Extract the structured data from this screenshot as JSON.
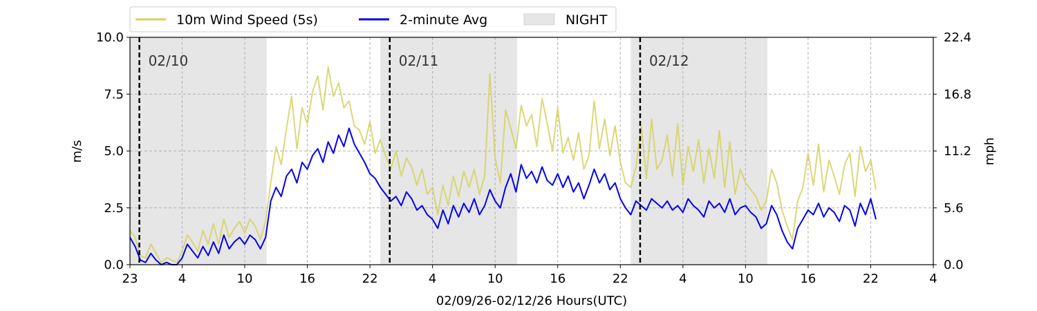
{
  "chart_data": {
    "type": "line",
    "xlabel": "02/09/26-02/12/26  Hours(UTC)",
    "ylabel_left": "m/s",
    "ylabel_right": "mph",
    "ylim": [
      0,
      10
    ],
    "xlim_hours": [
      0,
      77
    ],
    "x_ticks": [
      {
        "h": 0,
        "label": "23"
      },
      {
        "h": 5,
        "label": "4"
      },
      {
        "h": 11,
        "label": "10"
      },
      {
        "h": 17,
        "label": "16"
      },
      {
        "h": 23,
        "label": "22"
      },
      {
        "h": 29,
        "label": "4"
      },
      {
        "h": 35,
        "label": "10"
      },
      {
        "h": 41,
        "label": "16"
      },
      {
        "h": 47,
        "label": "22"
      },
      {
        "h": 53,
        "label": "4"
      },
      {
        "h": 59,
        "label": "10"
      },
      {
        "h": 65,
        "label": "16"
      },
      {
        "h": 71,
        "label": "22"
      },
      {
        "h": 77,
        "label": "4"
      }
    ],
    "y_ticks_left": [
      "0.0",
      "2.5",
      "5.0",
      "7.5",
      "10.0"
    ],
    "y_ticks_right": [
      "0.0",
      "5.6",
      "11.2",
      "16.8",
      "22.4"
    ],
    "grid": true,
    "legend_position": "top-left",
    "legend": [
      {
        "name": "10m Wind Speed (5s)",
        "kind": "line",
        "color": "#d4d15f"
      },
      {
        "name": "2-minute Avg",
        "kind": "line",
        "color": "#0000ee"
      },
      {
        "name": "NIGHT",
        "kind": "patch",
        "color": "#e6e6e6"
      }
    ],
    "night_periods": [
      [
        0,
        13.1
      ],
      [
        24,
        37.1
      ],
      [
        48,
        61.1
      ]
    ],
    "day_markers": [
      {
        "h": 0.9,
        "label": "02/10"
      },
      {
        "h": 24.9,
        "label": "02/11"
      },
      {
        "h": 48.9,
        "label": "02/12"
      }
    ],
    "series": [
      {
        "name": "2-minute Avg",
        "x": [
          0,
          0.5,
          1,
          1.5,
          2,
          2.5,
          3,
          3.5,
          4,
          4.5,
          5,
          5.5,
          6,
          6.5,
          7,
          7.5,
          8,
          8.5,
          9,
          9.5,
          10,
          10.5,
          11,
          11.5,
          12,
          12.5,
          13,
          13.5,
          14,
          14.5,
          15,
          15.5,
          16,
          16.5,
          17,
          17.5,
          18,
          18.5,
          19,
          19.5,
          20,
          20.5,
          21,
          21.5,
          22,
          22.5,
          23,
          23.5,
          24,
          24.5,
          25,
          25.5,
          26,
          26.5,
          27,
          27.5,
          28,
          28.5,
          29,
          29.5,
          30,
          30.5,
          31,
          31.5,
          32,
          32.5,
          33,
          33.5,
          34,
          34.5,
          35,
          35.5,
          36,
          36.5,
          37,
          37.5,
          38,
          38.5,
          39,
          39.5,
          40,
          40.5,
          41,
          41.5,
          42,
          42.5,
          43,
          43.5,
          44,
          44.5,
          45,
          45.5,
          46,
          46.5,
          47,
          47.5,
          48,
          48.5,
          49,
          49.5,
          50,
          50.5,
          51,
          51.5,
          52,
          52.5,
          53,
          53.5,
          54,
          54.5,
          55,
          55.5,
          56,
          56.5,
          57,
          57.5,
          58,
          58.5,
          59,
          59.5,
          60,
          60.5,
          61,
          61.5,
          62,
          62.5,
          63,
          63.5,
          64,
          64.5,
          65,
          65.5,
          66,
          66.5,
          67,
          67.5,
          68,
          68.5,
          69,
          69.5,
          70,
          70.5,
          71,
          71.5
        ],
        "values": [
          1.2,
          0.8,
          0.2,
          0.1,
          0.5,
          0.2,
          0,
          0.1,
          0,
          0,
          0.3,
          0.9,
          0.6,
          0.3,
          0.8,
          0.4,
          1.0,
          0.5,
          1.3,
          0.7,
          1.0,
          1.2,
          0.9,
          1.3,
          1.1,
          0.7,
          1.2,
          2.8,
          3.4,
          3.0,
          3.9,
          4.2,
          3.6,
          4.5,
          4.2,
          4.8,
          5.1,
          4.5,
          5.4,
          4.9,
          5.7,
          5.2,
          6.0,
          5.3,
          4.9,
          4.5,
          4.0,
          3.8,
          3.4,
          3.1,
          2.8,
          3.0,
          2.6,
          3.2,
          2.9,
          2.4,
          2.6,
          2.2,
          2.0,
          1.6,
          2.4,
          1.8,
          2.6,
          2.1,
          2.7,
          2.3,
          2.9,
          2.2,
          2.6,
          3.3,
          2.8,
          2.5,
          3.4,
          4.0,
          3.2,
          4.4,
          3.8,
          4.1,
          3.6,
          4.3,
          3.7,
          3.5,
          4.0,
          3.4,
          3.9,
          3.2,
          3.6,
          2.9,
          3.5,
          4.2,
          3.6,
          4.0,
          3.3,
          3.6,
          2.9,
          2.5,
          2.2,
          2.8,
          2.6,
          2.4,
          2.9,
          2.7,
          2.5,
          2.8,
          2.4,
          2.6,
          2.3,
          2.9,
          2.6,
          2.4,
          2.1,
          2.8,
          2.5,
          2.7,
          2.3,
          2.9,
          2.2,
          2.5,
          2.6,
          2.3,
          2.1,
          1.6,
          1.8,
          2.6,
          2.2,
          1.5,
          1.0,
          0.7,
          1.6,
          2.0,
          2.4,
          2.2,
          2.7,
          2.1,
          2.5,
          2.3,
          1.9,
          2.6,
          2.4,
          1.7,
          2.7,
          2.2,
          2.9,
          2.0
        ]
      },
      {
        "name": "10m Wind Speed (5s)",
        "x": [
          0,
          0.5,
          1,
          1.5,
          2,
          2.5,
          3,
          3.5,
          4,
          4.5,
          5,
          5.5,
          6,
          6.5,
          7,
          7.5,
          8,
          8.5,
          9,
          9.5,
          10,
          10.5,
          11,
          11.5,
          12,
          12.5,
          13,
          13.5,
          14,
          14.5,
          15,
          15.5,
          16,
          16.5,
          17,
          17.5,
          18,
          18.5,
          19,
          19.5,
          20,
          20.5,
          21,
          21.5,
          22,
          22.5,
          23,
          23.5,
          24,
          24.5,
          25,
          25.5,
          26,
          26.5,
          27,
          27.5,
          28,
          28.5,
          29,
          29.5,
          30,
          30.5,
          31,
          31.5,
          32,
          32.5,
          33,
          33.5,
          34,
          34.5,
          35,
          35.5,
          36,
          36.5,
          37,
          37.5,
          38,
          38.5,
          39,
          39.5,
          40,
          40.5,
          41,
          41.5,
          42,
          42.5,
          43,
          43.5,
          44,
          44.5,
          45,
          45.5,
          46,
          46.5,
          47,
          47.5,
          48,
          48.5,
          49,
          49.5,
          50,
          50.5,
          51,
          51.5,
          52,
          52.5,
          53,
          53.5,
          54,
          54.5,
          55,
          55.5,
          56,
          56.5,
          57,
          57.5,
          58,
          58.5,
          59,
          59.5,
          60,
          60.5,
          61,
          61.5,
          62,
          62.5,
          63,
          63.5,
          64,
          64.5,
          65,
          65.5,
          66,
          66.5,
          67,
          67.5,
          68,
          68.5,
          69,
          69.5,
          70,
          70.5,
          71,
          71.5
        ],
        "values": [
          1.5,
          1.2,
          0.4,
          0.3,
          0.9,
          0.5,
          0.1,
          0.3,
          0.2,
          0.1,
          0.6,
          1.3,
          1.0,
          0.6,
          1.5,
          0.9,
          1.8,
          0.9,
          2.0,
          1.2,
          1.6,
          1.9,
          1.4,
          2.0,
          1.7,
          1.1,
          1.9,
          3.6,
          5.2,
          4.4,
          6.0,
          7.4,
          5.1,
          6.9,
          6.2,
          7.6,
          8.3,
          6.8,
          8.7,
          7.4,
          8.0,
          6.9,
          7.2,
          6.1,
          5.9,
          5.3,
          6.3,
          4.9,
          5.5,
          4.8,
          4.2,
          5.0,
          3.9,
          4.7,
          4.3,
          3.5,
          4.2,
          3.1,
          3.4,
          2.2,
          3.5,
          2.6,
          3.9,
          3.0,
          4.1,
          3.4,
          4.2,
          3.1,
          3.9,
          8.4,
          4.7,
          3.6,
          6.8,
          6.0,
          5.1,
          7.0,
          6.1,
          6.6,
          5.2,
          7.3,
          6.2,
          5.0,
          6.9,
          4.9,
          5.6,
          4.6,
          5.8,
          4.2,
          4.8,
          7.2,
          5.1,
          6.4,
          4.8,
          6.1,
          4.5,
          3.6,
          3.4,
          4.3,
          6.1,
          3.8,
          6.4,
          4.2,
          4.6,
          5.7,
          3.9,
          6.2,
          3.5,
          5.2,
          4.1,
          5.5,
          3.6,
          5.1,
          3.8,
          5.9,
          3.4,
          5.4,
          3.1,
          4.2,
          3.6,
          3.3,
          3.0,
          2.4,
          2.8,
          4.2,
          3.6,
          2.4,
          1.7,
          1.1,
          2.8,
          3.4,
          4.9,
          3.5,
          5.3,
          3.2,
          4.6,
          3.9,
          3.1,
          4.4,
          4.9,
          3.0,
          5.2,
          4.1,
          4.6,
          3.3
        ]
      }
    ]
  }
}
